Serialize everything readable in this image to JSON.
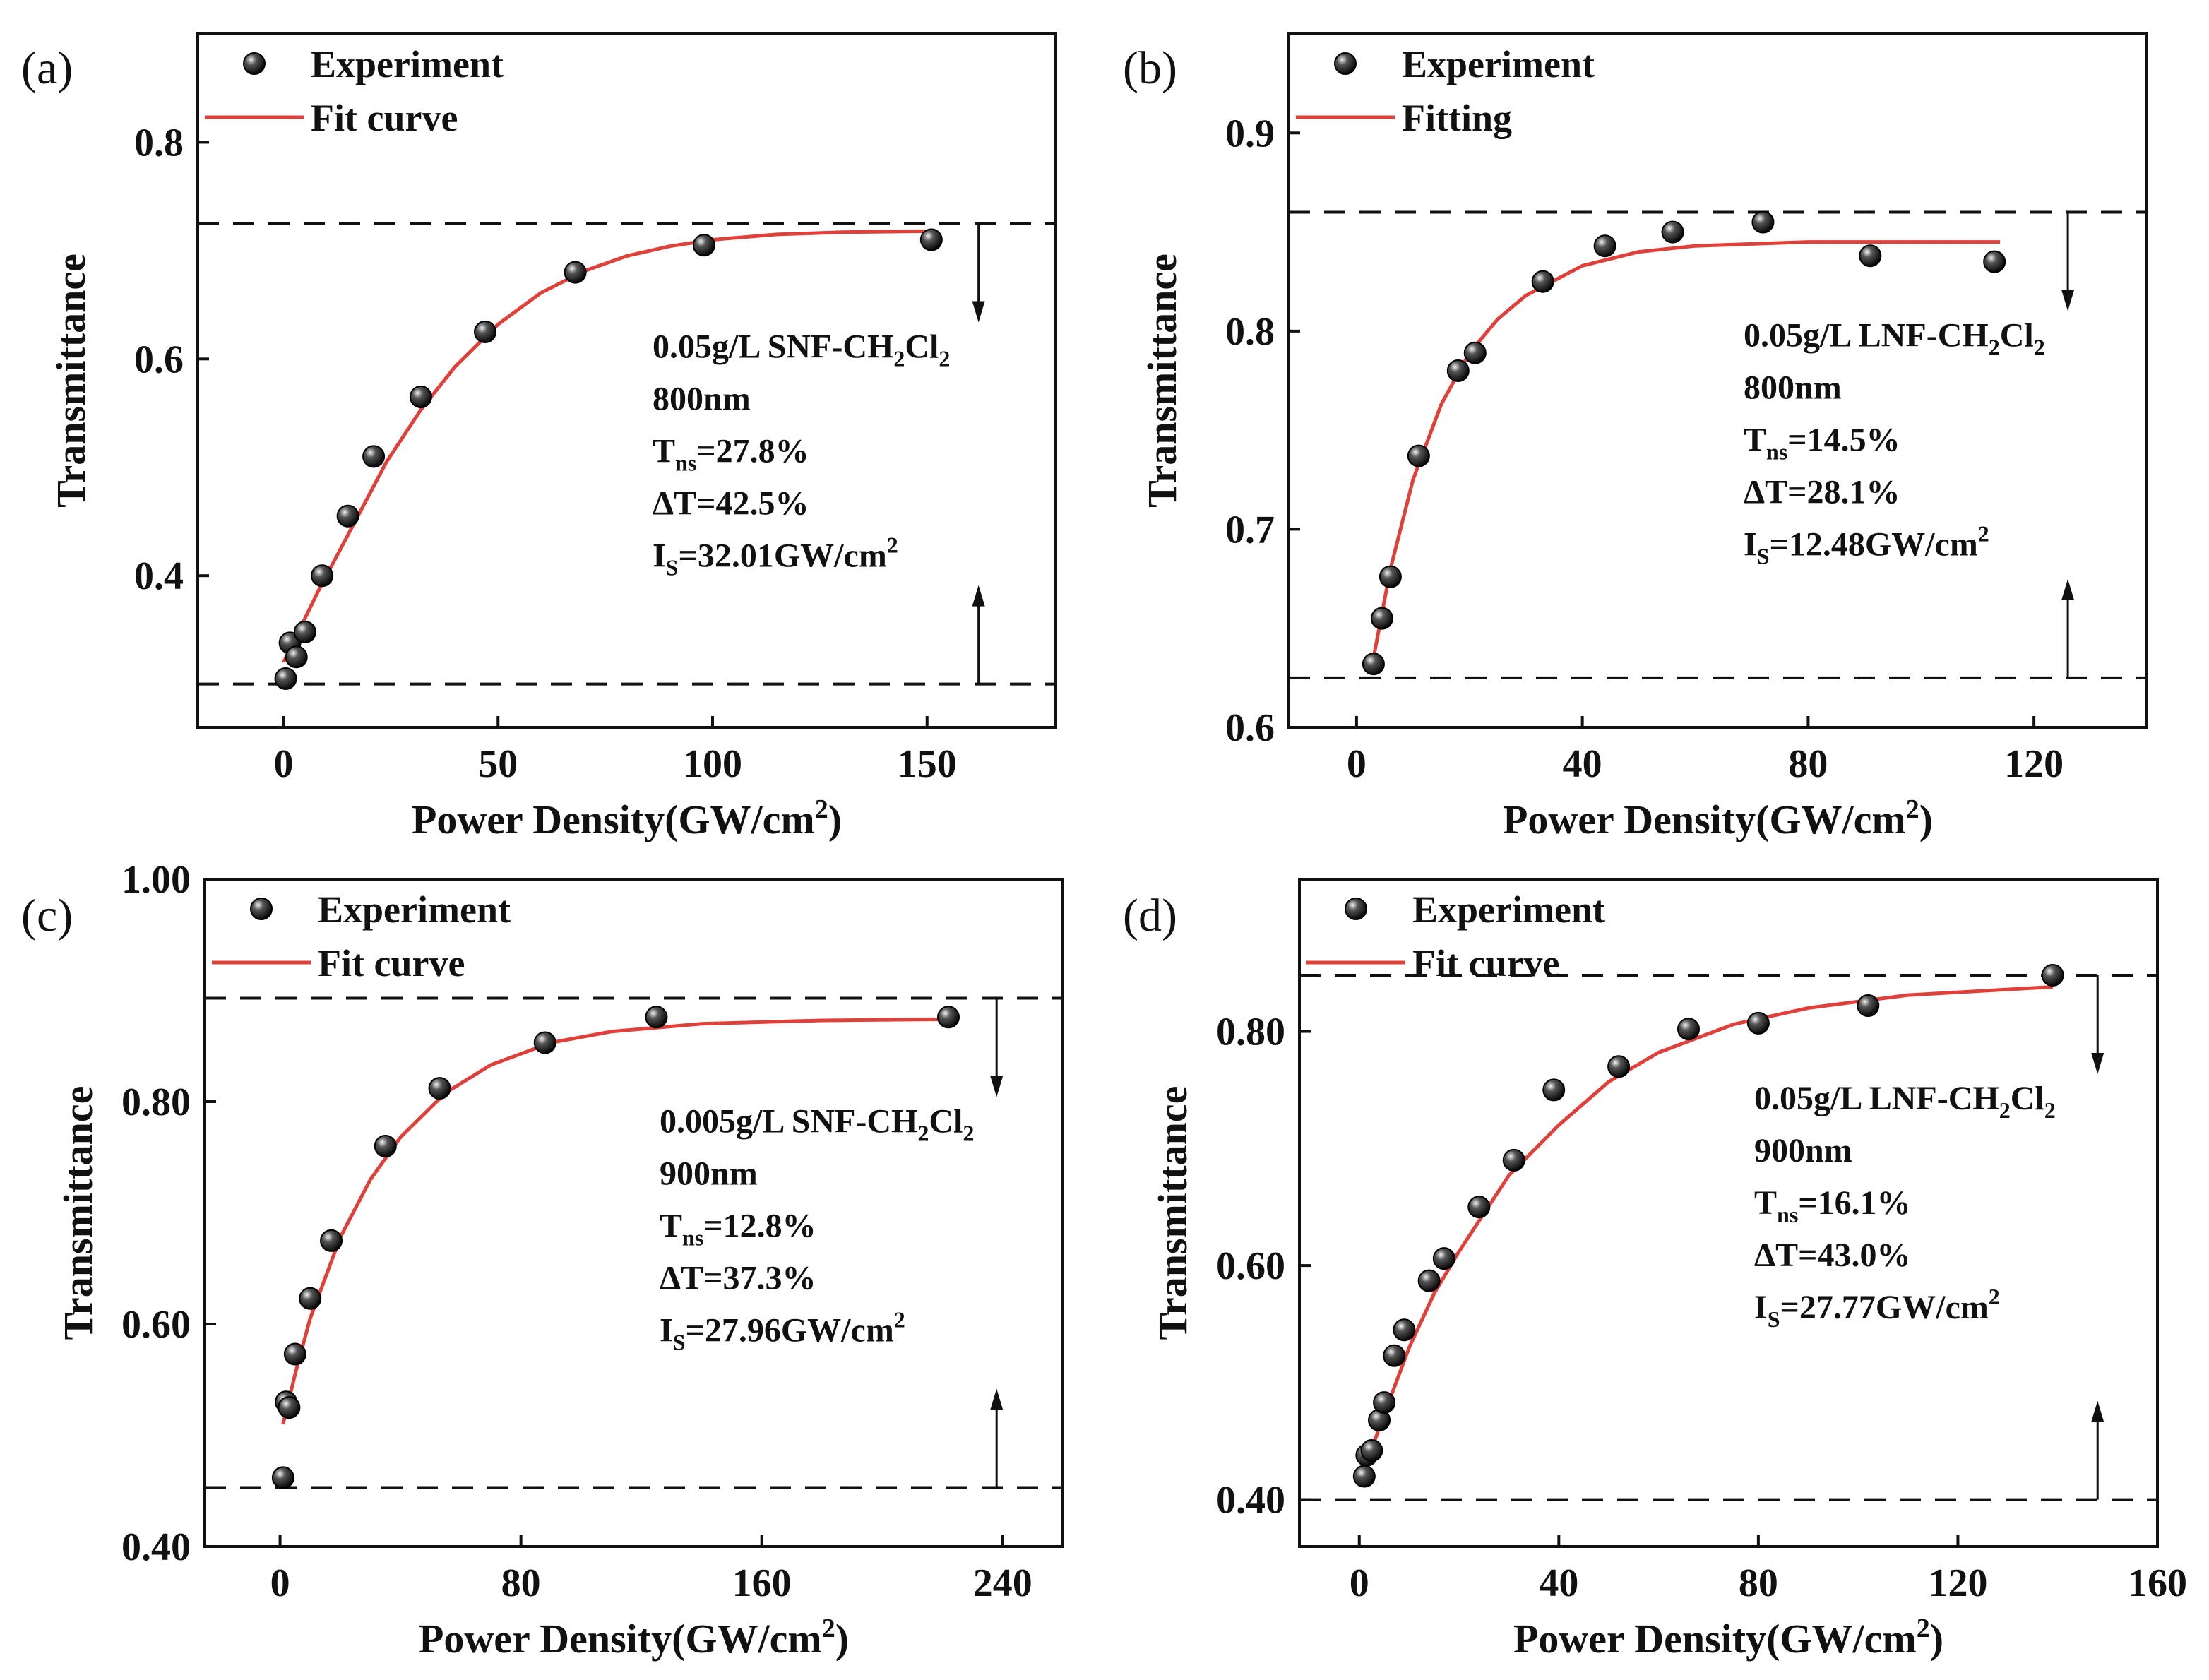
{
  "figure": {
    "background": "#ffffff",
    "fit_color": "#e0403a",
    "line_color": "#111111"
  },
  "chart_data": [
    {
      "id": "a",
      "type": "scatter",
      "panel_label": "(a)",
      "title": "",
      "xlabel": "Power Density(GW/cm",
      "xlabel_sup": "2",
      "xlabel_tail": ")",
      "ylabel": "Transmittance",
      "xlim": [
        -20,
        180
      ],
      "ylim": [
        0.26,
        0.9
      ],
      "xticks": [
        0,
        50,
        100,
        150
      ],
      "xtick_labels": [
        "0",
        "50",
        "100",
        "150"
      ],
      "yticks": [
        0.4,
        0.6,
        0.8
      ],
      "ytick_labels": [
        "0.4",
        "0.6",
        "0.8"
      ],
      "legend": {
        "experiment": "Experiment",
        "fit": "Fit curve",
        "position": "top-left"
      },
      "series": [
        {
          "name": "Experiment",
          "x": [
            0.5,
            1.5,
            3,
            5,
            9,
            15,
            21,
            32,
            47,
            68,
            98,
            151
          ],
          "y": [
            0.305,
            0.338,
            0.325,
            0.348,
            0.4,
            0.455,
            0.51,
            0.565,
            0.625,
            0.68,
            0.705,
            0.71
          ]
        },
        {
          "name": "Fit curve",
          "x": [
            0,
            8,
            16,
            24,
            32,
            40,
            50,
            60,
            70,
            80,
            90,
            100,
            115,
            130,
            152
          ],
          "y": [
            0.32,
            0.385,
            0.445,
            0.505,
            0.553,
            0.593,
            0.632,
            0.661,
            0.681,
            0.695,
            0.704,
            0.71,
            0.715,
            0.717,
            0.718
          ]
        }
      ],
      "hlines": [
        0.725,
        0.3
      ],
      "arrow_x": 162,
      "annotation": [
        "0.05g/L SNF-CH",
        "2",
        "Cl",
        "2",
        "800nm",
        "T",
        "ns",
        "=27.8%",
        "ΔT=42.5%",
        "I",
        "S",
        "=32.01GW/cm",
        "2"
      ]
    },
    {
      "id": "b",
      "type": "scatter",
      "panel_label": "(b)",
      "title": "",
      "xlabel": "Power Density(GW/cm",
      "xlabel_sup": "2",
      "xlabel_tail": ")",
      "ylabel": "Transmittance",
      "xlim": [
        -12,
        140
      ],
      "ylim": [
        0.6,
        0.95
      ],
      "xticks": [
        0,
        40,
        80,
        120
      ],
      "xtick_labels": [
        "0",
        "40",
        "80",
        "120"
      ],
      "yticks": [
        0.6,
        0.7,
        0.8,
        0.9
      ],
      "ytick_labels": [
        "0.6",
        "0.7",
        "0.8",
        "0.9"
      ],
      "legend": {
        "experiment": "Experiment",
        "fit": "Fitting",
        "position": "top-left"
      },
      "series": [
        {
          "name": "Experiment",
          "x": [
            3,
            4.5,
            6,
            11,
            18,
            21,
            33,
            44,
            56,
            72,
            91,
            113
          ],
          "y": [
            0.632,
            0.655,
            0.676,
            0.737,
            0.78,
            0.789,
            0.825,
            0.843,
            0.85,
            0.855,
            0.838,
            0.835
          ]
        },
        {
          "name": "Fitting",
          "x": [
            3,
            6,
            10,
            15,
            20,
            25,
            30,
            40,
            50,
            60,
            80,
            100,
            114
          ],
          "y": [
            0.635,
            0.68,
            0.725,
            0.763,
            0.789,
            0.806,
            0.818,
            0.833,
            0.84,
            0.843,
            0.845,
            0.845,
            0.845
          ]
        }
      ],
      "hlines": [
        0.86,
        0.625
      ],
      "arrow_x": 126,
      "annotation": [
        "0.05g/L LNF-CH",
        "2",
        "Cl",
        "2",
        "800nm",
        "T",
        "ns",
        "=14.5%",
        "ΔT=28.1%",
        "I",
        "S",
        "=12.48GW/cm",
        "2"
      ]
    },
    {
      "id": "c",
      "type": "scatter",
      "panel_label": "(c)",
      "title": "",
      "xlabel": "Power Density(GW/cm",
      "xlabel_sup": "2",
      "xlabel_tail": ")",
      "ylabel": "Transmittance",
      "xlim": [
        -25,
        260
      ],
      "ylim": [
        0.4,
        1.0
      ],
      "xticks": [
        0,
        80,
        160,
        240
      ],
      "xtick_labels": [
        "0",
        "80",
        "160",
        "240"
      ],
      "yticks": [
        0.4,
        0.6,
        0.8,
        1.0
      ],
      "ytick_labels": [
        "0.40",
        "0.60",
        "0.80",
        "1.00"
      ],
      "legend": {
        "experiment": "Experiment",
        "fit": "Fit curve",
        "position": "top-left"
      },
      "series": [
        {
          "name": "Experiment",
          "x": [
            1,
            2,
            3,
            5,
            10,
            17,
            35,
            53,
            88,
            125,
            222
          ],
          "y": [
            0.462,
            0.53,
            0.525,
            0.573,
            0.623,
            0.675,
            0.76,
            0.812,
            0.853,
            0.876,
            0.876
          ]
        },
        {
          "name": "Fit curve",
          "x": [
            1,
            5,
            10,
            20,
            30,
            40,
            55,
            70,
            90,
            110,
            140,
            180,
            222
          ],
          "y": [
            0.51,
            0.555,
            0.605,
            0.678,
            0.73,
            0.768,
            0.808,
            0.833,
            0.853,
            0.863,
            0.87,
            0.873,
            0.874
          ]
        }
      ],
      "hlines": [
        0.893,
        0.453
      ],
      "arrow_x": 238,
      "annotation": [
        "0.005g/L SNF-CH",
        "2",
        "Cl",
        "2",
        "900nm",
        "T",
        "ns",
        "=12.8%",
        "ΔT=37.3%",
        "I",
        "S",
        "=27.96GW/cm",
        "2"
      ]
    },
    {
      "id": "d",
      "type": "scatter",
      "panel_label": "(d)",
      "title": "",
      "xlabel": "Power Density(GW/cm",
      "xlabel_sup": "2",
      "xlabel_tail": ")",
      "ylabel": "Transmittance",
      "xlim": [
        -12,
        160
      ],
      "ylim": [
        0.36,
        0.93
      ],
      "xticks": [
        0,
        40,
        80,
        120,
        160
      ],
      "xtick_labels": [
        "0",
        "40",
        "80",
        "120",
        "160"
      ],
      "yticks": [
        0.4,
        0.6,
        0.8
      ],
      "ytick_labels": [
        "0.40",
        "0.60",
        "0.80"
      ],
      "legend": {
        "experiment": "Experiment",
        "fit": "Fit curve",
        "position": "top-left"
      },
      "series": [
        {
          "name": "Experiment",
          "x": [
            1,
            1.5,
            2.5,
            4,
            5,
            7,
            9,
            14,
            17,
            24,
            31,
            39,
            52,
            66,
            80,
            102,
            139
          ],
          "y": [
            0.42,
            0.438,
            0.442,
            0.468,
            0.483,
            0.523,
            0.545,
            0.587,
            0.606,
            0.65,
            0.69,
            0.75,
            0.77,
            0.802,
            0.807,
            0.822,
            0.848
          ]
        },
        {
          "name": "Fit curve",
          "x": [
            0.5,
            5,
            10,
            15,
            20,
            30,
            40,
            50,
            60,
            75,
            90,
            110,
            139
          ],
          "y": [
            0.42,
            0.473,
            0.53,
            0.576,
            0.612,
            0.677,
            0.72,
            0.757,
            0.782,
            0.806,
            0.82,
            0.831,
            0.838
          ]
        }
      ],
      "hlines": [
        0.848,
        0.4
      ],
      "arrow_x": 148,
      "annotation": [
        "0.05g/L LNF-CH",
        "2",
        "Cl",
        "2",
        "900nm",
        "T",
        "ns",
        "=16.1%",
        "ΔT=43.0%",
        "I",
        "S",
        "=27.77GW/cm",
        "2"
      ]
    }
  ]
}
